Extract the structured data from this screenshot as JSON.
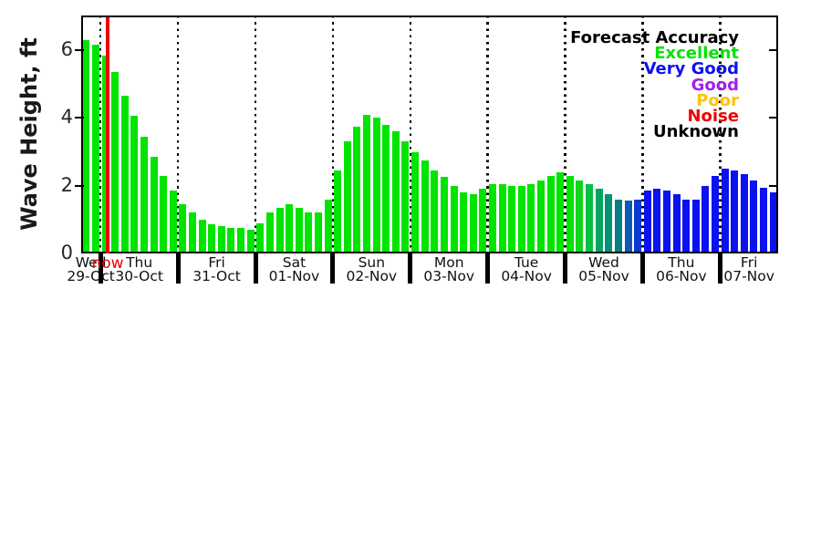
{
  "chart_data": {
    "type": "bar",
    "ylabel": "Wave Height, ft",
    "y_ticks": [
      0,
      2,
      4,
      6
    ],
    "ylim": [
      0,
      7
    ],
    "now_marker": {
      "label": "now",
      "color": "#f20000"
    },
    "legend": {
      "title": "Forecast Accuracy",
      "title_color": "#000000",
      "position": "top-right",
      "items": [
        {
          "label": "Excellent",
          "color": "#00e400"
        },
        {
          "label": "Very Good",
          "color": "#0a12f0"
        },
        {
          "label": "Good",
          "color": "#a21fe8"
        },
        {
          "label": "Poor",
          "color": "#ffc400"
        },
        {
          "label": "Noise",
          "color": "#f00000"
        },
        {
          "label": "Unknown",
          "color": "#000000"
        }
      ]
    },
    "days": [
      {
        "weekday": "Wed",
        "date": "29-Oct",
        "color": "#00e400",
        "values": [
          6.3,
          6.15
        ]
      },
      {
        "weekday": "Thu",
        "date": "30-Oct",
        "color": "#00e400",
        "values": [
          5.85,
          5.35,
          4.65,
          4.05,
          3.45,
          2.85,
          2.3,
          1.85
        ]
      },
      {
        "weekday": "Fri",
        "date": "31-Oct",
        "color": "#00e400",
        "values": [
          1.45,
          1.2,
          1.0,
          0.85,
          0.8,
          0.75,
          0.75,
          0.7
        ]
      },
      {
        "weekday": "Sat",
        "date": "01-Nov",
        "color": "#00e400",
        "values": [
          0.9,
          1.2,
          1.35,
          1.45,
          1.35,
          1.2,
          1.2,
          1.6
        ]
      },
      {
        "weekday": "Sun",
        "date": "02-Nov",
        "color": "#00e400",
        "values": [
          2.45,
          3.3,
          3.75,
          4.1,
          4.0,
          3.8,
          3.6,
          3.3
        ]
      },
      {
        "weekday": "Mon",
        "date": "03-Nov",
        "color": "#00e400",
        "values": [
          3.0,
          2.75,
          2.45,
          2.25,
          2.0,
          1.8,
          1.75,
          1.9
        ]
      },
      {
        "weekday": "Tue",
        "date": "04-Nov",
        "color": "#00e400",
        "values": [
          2.05,
          2.05,
          2.0,
          2.0,
          2.05,
          2.15,
          2.3,
          2.4
        ]
      },
      {
        "weekday": "Wed",
        "date": "05-Nov",
        "color": "#00e400",
        "colors": [
          "#00e400",
          "#0ed41a",
          "#01bf41",
          "#02a55f",
          "#039175",
          "#047f86",
          "#0e59b2",
          "#0a38d2"
        ],
        "values": [
          2.3,
          2.15,
          2.05,
          1.9,
          1.75,
          1.6,
          1.55,
          1.6
        ]
      },
      {
        "weekday": "Thu",
        "date": "06-Nov",
        "color": "#0a12f0",
        "values": [
          1.85,
          1.9,
          1.85,
          1.75,
          1.6,
          1.6,
          2.0,
          2.3
        ]
      },
      {
        "weekday": "Fri",
        "date": "07-Nov",
        "color": "#0a12f0",
        "values": [
          2.5,
          2.45,
          2.35,
          2.15,
          1.95,
          1.8
        ]
      }
    ]
  }
}
